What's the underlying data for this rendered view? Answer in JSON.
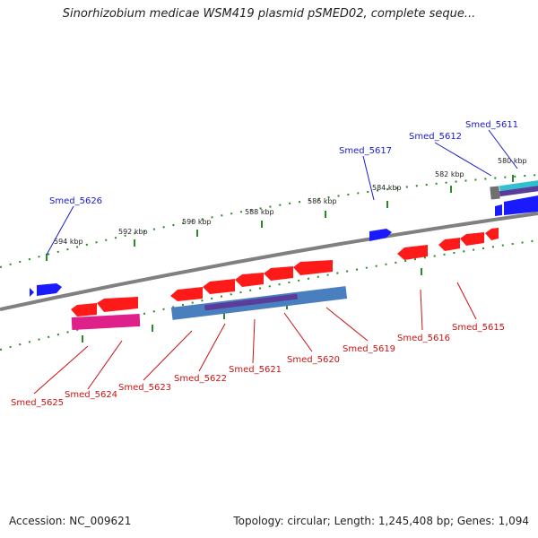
{
  "title": "Sinorhizobium medicae WSM419 plasmid pSMED02, complete seque...",
  "footer": {
    "accession": "Accession: NC_009621",
    "summary": "Topology: circular; Length: 1,245,408 bp; Genes: 1,094"
  },
  "colors": {
    "forward_gene": "#1a1aff",
    "reverse_gene": "#ff1a1a",
    "forward_label": "#1a1acc",
    "reverse_label": "#cc1111",
    "backbone": "#808080",
    "tick": "#2a8a2a",
    "cds_blue": "#4a7fbf",
    "cds_purple": "#5a3c9a",
    "magenta": "#e0208a",
    "cyan": "#30c0d0"
  },
  "ticks": [
    "594 kbp",
    "592 kbp",
    "590 kbp",
    "588 kbp",
    "586 kbp",
    "584 kbp",
    "582 kbp",
    "580 kbp"
  ],
  "forward_genes": [
    "Smed_5626",
    "Smed_5617",
    "Smed_5612",
    "Smed_5611"
  ],
  "reverse_genes": [
    "Smed_5625",
    "Smed_5624",
    "Smed_5623",
    "Smed_5622",
    "Smed_5621",
    "Smed_5620",
    "Smed_5619",
    "Smed_5616",
    "Smed_5615"
  ]
}
